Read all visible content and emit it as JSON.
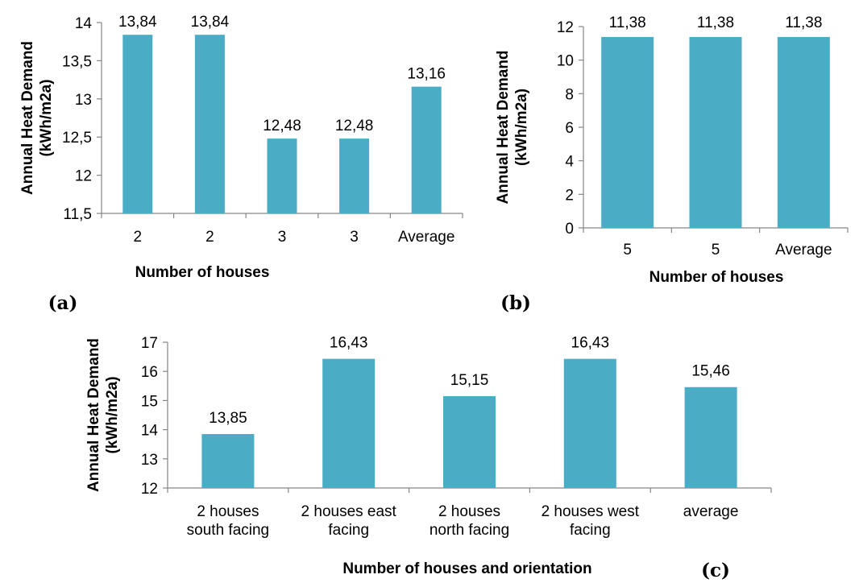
{
  "chart_data": [
    {
      "type": "bar",
      "panel_label": "(a)",
      "categories": [
        "2",
        "2",
        "3",
        "3",
        "Average"
      ],
      "values": [
        13.84,
        13.84,
        12.48,
        12.48,
        13.16
      ],
      "data_labels": [
        "13,84",
        "13,84",
        "12,48",
        "12,48",
        "13,16"
      ],
      "yticks": [
        "11,5",
        "12",
        "12,5",
        "13",
        "13,5",
        "14"
      ],
      "ylim": [
        11.5,
        14
      ],
      "xlabel": "Number of houses",
      "ylabel": [
        "Annual Heat Demand",
        "(kWh/m2a)"
      ],
      "bar_color": "#4BACC6",
      "grid": false
    },
    {
      "type": "bar",
      "panel_label": "(b)",
      "categories": [
        "5",
        "5",
        "Average"
      ],
      "values": [
        11.38,
        11.38,
        11.38
      ],
      "data_labels": [
        "11,38",
        "11,38",
        "11,38"
      ],
      "yticks": [
        "0",
        "2",
        "4",
        "6",
        "8",
        "10",
        "12"
      ],
      "ylim": [
        0,
        12
      ],
      "xlabel": "Number of houses",
      "ylabel": [
        "Annual Heat Demand",
        "(kWh/m2a)"
      ],
      "bar_color": "#4BACC6",
      "grid": false
    },
    {
      "type": "bar",
      "panel_label": "(c)",
      "categories": [
        [
          "2 houses",
          "south facing"
        ],
        [
          "2 houses east",
          "facing"
        ],
        [
          "2 houses",
          "north facing"
        ],
        [
          "2 houses west",
          "facing"
        ],
        [
          "average"
        ]
      ],
      "values": [
        13.85,
        16.43,
        15.15,
        16.43,
        15.46
      ],
      "data_labels": [
        "13,85",
        "16,43",
        "15,15",
        "16,43",
        "15,46"
      ],
      "yticks": [
        "12",
        "13",
        "14",
        "15",
        "16",
        "17"
      ],
      "ylim": [
        12,
        17
      ],
      "xlabel": "Number of houses and orientation",
      "ylabel": [
        "Annual Heat Demand",
        "(kWh/m2a)"
      ],
      "bar_color": "#4BACC6",
      "grid": false
    }
  ]
}
